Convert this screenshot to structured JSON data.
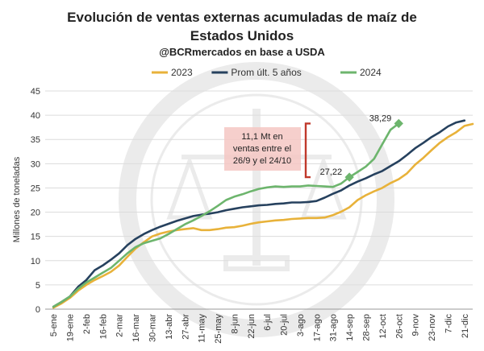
{
  "chart_data": {
    "type": "line",
    "title": "Evolución de ventas externas acumuladas de maíz de",
    "title_line2": "Estados Unidos",
    "subtitle": "@BCRmercados en base a USDA",
    "ylabel": "Millones de toneladas",
    "ylim": [
      0,
      45
    ],
    "yticks": [
      0,
      5,
      10,
      15,
      20,
      25,
      30,
      35,
      40,
      45
    ],
    "grid": true,
    "legend_position": "top",
    "categories": [
      "5-ene",
      "19-ene",
      "2-feb",
      "16-feb",
      "2-mar",
      "16-mar",
      "30-mar",
      "13-abr",
      "27-abr",
      "11-may",
      "25-may",
      "8-jun",
      "22-jun",
      "6-jul",
      "20-jul",
      "3-ago",
      "17-ago",
      "31-ago",
      "14-sep",
      "28-sep",
      "12-oct",
      "26-oct",
      "9-nov",
      "23-nov",
      "7-dic",
      "21-dic"
    ],
    "series": [
      {
        "name": "2023",
        "color": "#E8B23A",
        "points": [
          [
            0,
            0.3
          ],
          [
            0.5,
            1.2
          ],
          [
            1,
            2.3
          ],
          [
            1.5,
            3.8
          ],
          [
            2,
            5.0
          ],
          [
            2.5,
            6.0
          ],
          [
            3,
            6.8
          ],
          [
            3.5,
            7.7
          ],
          [
            4,
            9.0
          ],
          [
            4.5,
            10.8
          ],
          [
            5,
            12.5
          ],
          [
            5.5,
            13.8
          ],
          [
            6,
            15.0
          ],
          [
            6.5,
            15.6
          ],
          [
            7,
            16.0
          ],
          [
            7.5,
            16.3
          ],
          [
            8,
            16.5
          ],
          [
            8.5,
            16.7
          ],
          [
            9,
            16.3
          ],
          [
            9.5,
            16.3
          ],
          [
            10,
            16.5
          ],
          [
            10.5,
            16.8
          ],
          [
            11,
            16.9
          ],
          [
            11.5,
            17.2
          ],
          [
            12,
            17.6
          ],
          [
            12.5,
            17.9
          ],
          [
            13,
            18.1
          ],
          [
            13.5,
            18.3
          ],
          [
            14,
            18.4
          ],
          [
            14.5,
            18.6
          ],
          [
            15,
            18.7
          ],
          [
            15.5,
            18.8
          ],
          [
            16,
            18.8
          ],
          [
            16.5,
            18.9
          ],
          [
            17,
            19.4
          ],
          [
            17.5,
            20.1
          ],
          [
            18,
            21.0
          ],
          [
            18.5,
            22.5
          ],
          [
            19,
            23.5
          ],
          [
            19.5,
            24.3
          ],
          [
            20,
            25.0
          ],
          [
            20.5,
            26.0
          ],
          [
            21,
            26.8
          ],
          [
            21.5,
            28.0
          ],
          [
            22,
            29.8
          ],
          [
            22.5,
            31.2
          ],
          [
            23,
            32.8
          ],
          [
            23.5,
            34.3
          ],
          [
            24,
            35.5
          ],
          [
            24.5,
            36.5
          ],
          [
            25,
            37.8
          ],
          [
            25.5,
            38.2
          ]
        ]
      },
      {
        "name": "Prom últ. 5 años",
        "color": "#26415E",
        "points": [
          [
            0,
            0.5
          ],
          [
            0.5,
            1.5
          ],
          [
            1,
            2.6
          ],
          [
            1.5,
            4.6
          ],
          [
            2,
            6.0
          ],
          [
            2.5,
            8.0
          ],
          [
            3,
            9.0
          ],
          [
            3.5,
            10.2
          ],
          [
            4,
            11.5
          ],
          [
            4.5,
            13.2
          ],
          [
            5,
            14.5
          ],
          [
            5.5,
            15.5
          ],
          [
            6,
            16.3
          ],
          [
            6.5,
            17.0
          ],
          [
            7,
            17.6
          ],
          [
            7.5,
            18.2
          ],
          [
            8,
            18.7
          ],
          [
            8.5,
            19.2
          ],
          [
            9,
            19.5
          ],
          [
            9.5,
            19.7
          ],
          [
            10,
            20.0
          ],
          [
            10.5,
            20.4
          ],
          [
            11,
            20.7
          ],
          [
            11.5,
            21.0
          ],
          [
            12,
            21.2
          ],
          [
            12.5,
            21.4
          ],
          [
            13,
            21.5
          ],
          [
            13.5,
            21.7
          ],
          [
            14,
            21.8
          ],
          [
            14.5,
            22.0
          ],
          [
            15,
            22.0
          ],
          [
            15.5,
            22.1
          ],
          [
            16,
            22.3
          ],
          [
            16.5,
            23.0
          ],
          [
            17,
            23.8
          ],
          [
            17.5,
            24.5
          ],
          [
            18,
            25.5
          ],
          [
            18.5,
            26.3
          ],
          [
            19,
            27.0
          ],
          [
            19.5,
            27.8
          ],
          [
            20,
            28.5
          ],
          [
            20.5,
            29.5
          ],
          [
            21,
            30.5
          ],
          [
            21.5,
            31.8
          ],
          [
            22,
            33.2
          ],
          [
            22.5,
            34.3
          ],
          [
            23,
            35.5
          ],
          [
            23.5,
            36.5
          ],
          [
            24,
            37.7
          ],
          [
            24.5,
            38.5
          ],
          [
            25,
            38.9
          ]
        ]
      },
      {
        "name": "2024",
        "color": "#6DB56D",
        "points": [
          [
            0,
            0.5
          ],
          [
            0.5,
            1.5
          ],
          [
            1,
            2.6
          ],
          [
            1.5,
            4.2
          ],
          [
            2,
            5.5
          ],
          [
            2.5,
            6.5
          ],
          [
            3,
            7.5
          ],
          [
            3.5,
            8.5
          ],
          [
            4,
            10.0
          ],
          [
            4.5,
            11.5
          ],
          [
            5,
            12.8
          ],
          [
            5.5,
            13.6
          ],
          [
            6,
            14.1
          ],
          [
            6.5,
            14.6
          ],
          [
            7,
            15.5
          ],
          [
            7.5,
            16.5
          ],
          [
            8,
            17.5
          ],
          [
            8.5,
            18.3
          ],
          [
            9,
            19.2
          ],
          [
            9.5,
            20.2
          ],
          [
            10,
            21.3
          ],
          [
            10.5,
            22.5
          ],
          [
            11,
            23.2
          ],
          [
            11.5,
            23.7
          ],
          [
            12,
            24.3
          ],
          [
            12.5,
            24.8
          ],
          [
            13,
            25.1
          ],
          [
            13.5,
            25.3
          ],
          [
            14,
            25.2
          ],
          [
            14.5,
            25.3
          ],
          [
            15,
            25.3
          ],
          [
            15.5,
            25.5
          ],
          [
            16,
            25.4
          ],
          [
            16.5,
            25.3
          ],
          [
            17,
            25.2
          ],
          [
            17.5,
            25.9
          ],
          [
            18,
            27.22
          ],
          [
            18.5,
            28.3
          ],
          [
            19,
            29.4
          ],
          [
            19.5,
            31.0
          ],
          [
            20,
            34.0
          ],
          [
            20.5,
            37.0
          ],
          [
            21,
            38.29
          ]
        ]
      }
    ],
    "markers": [
      {
        "series": "2024",
        "x": 18,
        "y": 27.22,
        "label": "27,22"
      },
      {
        "series": "2024",
        "x": 21,
        "y": 38.29,
        "label": "38,29"
      }
    ],
    "annotation": {
      "lines": [
        "11,1 Mt en",
        "ventas entre el",
        "26/9 y el 24/10"
      ],
      "bracket_from": 27.22,
      "bracket_to": 38.29
    }
  }
}
